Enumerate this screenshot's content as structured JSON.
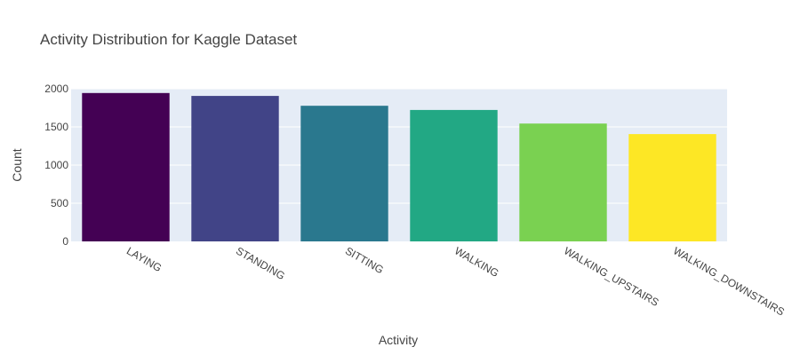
{
  "chart_data": {
    "type": "bar",
    "title": "Activity Distribution for Kaggle Dataset",
    "xlabel": "Activity",
    "ylabel": "Count",
    "categories": [
      "LAYING",
      "STANDING",
      "SITTING",
      "WALKING",
      "WALKING_UPSTAIRS",
      "WALKING_DOWNSTAIRS"
    ],
    "values": [
      1944,
      1906,
      1777,
      1722,
      1544,
      1406
    ],
    "colors": [
      "#440154",
      "#414487",
      "#2a788e",
      "#22a884",
      "#7ad151",
      "#fde725"
    ],
    "ylim": [
      0,
      2000
    ],
    "yticks": [
      0,
      500,
      1000,
      1500,
      2000
    ],
    "ytick_labels": [
      "0",
      "500",
      "1000",
      "1500",
      "2000"
    ],
    "grid": true,
    "background_color": "#e5ecf6"
  }
}
